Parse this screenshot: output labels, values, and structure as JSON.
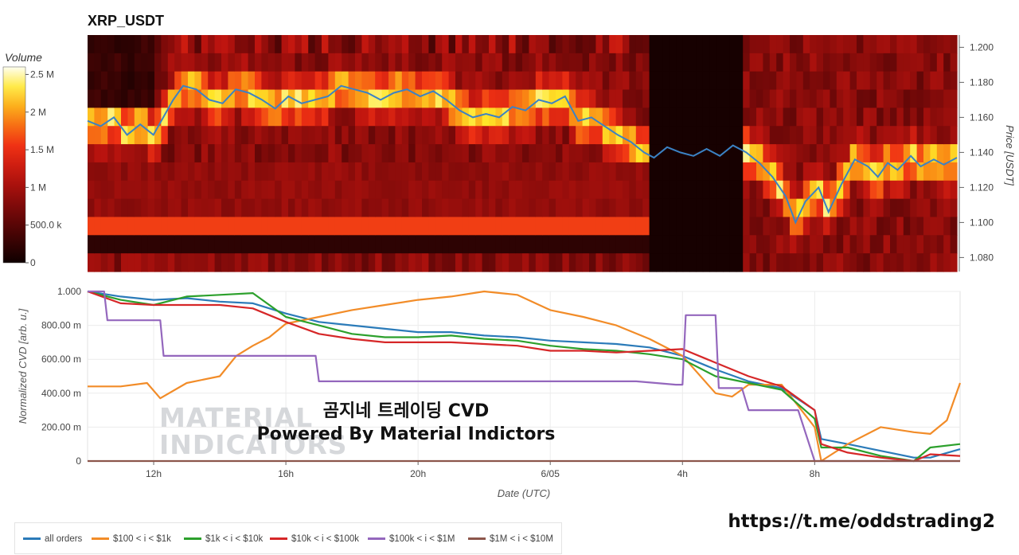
{
  "title": "XRP_USDT",
  "colorbar": {
    "title": "Volume",
    "ticks": [
      "2.5 M",
      "2 M",
      "1.5 M",
      "1 M",
      "500.0 k",
      "0"
    ]
  },
  "heatmap_y_label": "Price [USDT]",
  "watermark": {
    "korean": "곰지네 트레이딩 CVD",
    "english": "Powered By Material Indictors",
    "logo_line1": "MATERIAL",
    "logo_line2": "INDICATORS"
  },
  "link": "https://t.me/oddstrading2",
  "legend": [
    {
      "name": "all orders",
      "color": "#2b7bb9"
    },
    {
      "name": "$100 < i < $1k",
      "color": "#f28c28"
    },
    {
      "name": "$1k < i < $10k",
      "color": "#2ca02c"
    },
    {
      "name": "$10k < i < $100k",
      "color": "#d62728"
    },
    {
      "name": "$100k < i < $1M",
      "color": "#9467bd"
    },
    {
      "name": "$1M < i < $10M",
      "color": "#8c564b"
    }
  ],
  "chart_data": [
    {
      "type": "heatmap",
      "title": "XRP_USDT",
      "ylabel": "Price [USDT]",
      "y_ticks": [
        "1.200",
        "1.180",
        "1.160",
        "1.140",
        "1.120",
        "1.100",
        "1.080"
      ],
      "ylim": [
        1.072,
        1.207
      ],
      "colorbar_range": [
        0,
        2600000
      ],
      "colorbar_label": "Volume",
      "price_series": [
        {
          "t": 0.0,
          "p": 1.158
        },
        {
          "t": 0.4,
          "p": 1.155
        },
        {
          "t": 0.8,
          "p": 1.16
        },
        {
          "t": 1.2,
          "p": 1.15
        },
        {
          "t": 1.6,
          "p": 1.156
        },
        {
          "t": 2.0,
          "p": 1.15
        },
        {
          "t": 2.3,
          "p": 1.16
        },
        {
          "t": 2.6,
          "p": 1.17
        },
        {
          "t": 2.9,
          "p": 1.178
        },
        {
          "t": 3.3,
          "p": 1.176
        },
        {
          "t": 3.7,
          "p": 1.17
        },
        {
          "t": 4.1,
          "p": 1.168
        },
        {
          "t": 4.5,
          "p": 1.176
        },
        {
          "t": 4.9,
          "p": 1.174
        },
        {
          "t": 5.3,
          "p": 1.17
        },
        {
          "t": 5.7,
          "p": 1.165
        },
        {
          "t": 6.1,
          "p": 1.172
        },
        {
          "t": 6.5,
          "p": 1.168
        },
        {
          "t": 6.9,
          "p": 1.17
        },
        {
          "t": 7.3,
          "p": 1.172
        },
        {
          "t": 7.7,
          "p": 1.178
        },
        {
          "t": 8.1,
          "p": 1.176
        },
        {
          "t": 8.5,
          "p": 1.174
        },
        {
          "t": 8.9,
          "p": 1.17
        },
        {
          "t": 9.3,
          "p": 1.174
        },
        {
          "t": 9.7,
          "p": 1.176
        },
        {
          "t": 10.1,
          "p": 1.172
        },
        {
          "t": 10.5,
          "p": 1.175
        },
        {
          "t": 10.9,
          "p": 1.17
        },
        {
          "t": 11.3,
          "p": 1.164
        },
        {
          "t": 11.7,
          "p": 1.16
        },
        {
          "t": 12.1,
          "p": 1.162
        },
        {
          "t": 12.5,
          "p": 1.16
        },
        {
          "t": 12.9,
          "p": 1.166
        },
        {
          "t": 13.3,
          "p": 1.164
        },
        {
          "t": 13.7,
          "p": 1.17
        },
        {
          "t": 14.1,
          "p": 1.168
        },
        {
          "t": 14.5,
          "p": 1.172
        },
        {
          "t": 14.9,
          "p": 1.158
        },
        {
          "t": 15.3,
          "p": 1.16
        },
        {
          "t": 15.7,
          "p": 1.155
        },
        {
          "t": 16.1,
          "p": 1.15
        },
        {
          "t": 16.5,
          "p": 1.146
        },
        {
          "t": 16.9,
          "p": 1.14
        },
        {
          "t": 17.2,
          "p": 1.137
        },
        {
          "t": 17.6,
          "p": 1.143
        },
        {
          "t": 18.0,
          "p": 1.14
        },
        {
          "t": 18.4,
          "p": 1.138
        },
        {
          "t": 18.8,
          "p": 1.142
        },
        {
          "t": 19.2,
          "p": 1.138
        },
        {
          "t": 19.6,
          "p": 1.144
        },
        {
          "t": 20.0,
          "p": 1.14
        },
        {
          "t": 20.4,
          "p": 1.134
        },
        {
          "t": 20.8,
          "p": 1.126
        },
        {
          "t": 21.2,
          "p": 1.115
        },
        {
          "t": 21.5,
          "p": 1.1
        },
        {
          "t": 21.8,
          "p": 1.112
        },
        {
          "t": 22.2,
          "p": 1.12
        },
        {
          "t": 22.5,
          "p": 1.106
        },
        {
          "t": 22.9,
          "p": 1.122
        },
        {
          "t": 23.3,
          "p": 1.136
        },
        {
          "t": 23.7,
          "p": 1.132
        },
        {
          "t": 24.0,
          "p": 1.126
        },
        {
          "t": 24.3,
          "p": 1.134
        },
        {
          "t": 24.6,
          "p": 1.13
        },
        {
          "t": 25.0,
          "p": 1.138
        },
        {
          "t": 25.3,
          "p": 1.132
        },
        {
          "t": 25.7,
          "p": 1.136
        },
        {
          "t": 26.0,
          "p": 1.133
        },
        {
          "t": 26.4,
          "p": 1.137
        }
      ]
    },
    {
      "type": "line",
      "xlabel": "Date (UTC)",
      "ylabel": "Normalized CVD [arb. u.]",
      "y_ticks": [
        "1.000",
        "800.00 m",
        "600.00 m",
        "400.00 m",
        "200.00 m",
        "0"
      ],
      "x_ticks": [
        "12h",
        "16h",
        "20h",
        "6/05",
        "4h",
        "8h"
      ],
      "ylim": [
        0,
        1
      ],
      "x_unit": "hours since start of plotted window",
      "xlim": [
        0,
        26.4
      ],
      "series": [
        {
          "name": "all orders",
          "points": [
            [
              0,
              1.0
            ],
            [
              1,
              0.97
            ],
            [
              2,
              0.95
            ],
            [
              3,
              0.96
            ],
            [
              4,
              0.94
            ],
            [
              5,
              0.93
            ],
            [
              6,
              0.87
            ],
            [
              7,
              0.82
            ],
            [
              8,
              0.8
            ],
            [
              9,
              0.78
            ],
            [
              10,
              0.76
            ],
            [
              11,
              0.76
            ],
            [
              12,
              0.74
            ],
            [
              13,
              0.73
            ],
            [
              14,
              0.71
            ],
            [
              15,
              0.7
            ],
            [
              16,
              0.69
            ],
            [
              17,
              0.67
            ],
            [
              18,
              0.62
            ],
            [
              19,
              0.54
            ],
            [
              20,
              0.47
            ],
            [
              21,
              0.43
            ],
            [
              22,
              0.3
            ],
            [
              22.2,
              0.13
            ],
            [
              23,
              0.1
            ],
            [
              24,
              0.06
            ],
            [
              25,
              0.02
            ],
            [
              25.5,
              0.02
            ],
            [
              26.4,
              0.07
            ]
          ]
        },
        {
          "name": "$100 < i < $1k",
          "points": [
            [
              0,
              0.44
            ],
            [
              1,
              0.44
            ],
            [
              1.8,
              0.46
            ],
            [
              2.2,
              0.37
            ],
            [
              3,
              0.46
            ],
            [
              4,
              0.5
            ],
            [
              4.5,
              0.62
            ],
            [
              5,
              0.68
            ],
            [
              5.5,
              0.73
            ],
            [
              6,
              0.81
            ],
            [
              7,
              0.85
            ],
            [
              8,
              0.89
            ],
            [
              9,
              0.92
            ],
            [
              10,
              0.95
            ],
            [
              11,
              0.97
            ],
            [
              12,
              1.0
            ],
            [
              13,
              0.98
            ],
            [
              14,
              0.89
            ],
            [
              15,
              0.85
            ],
            [
              16,
              0.8
            ],
            [
              17,
              0.72
            ],
            [
              18,
              0.62
            ],
            [
              19,
              0.4
            ],
            [
              19.5,
              0.38
            ],
            [
              20,
              0.45
            ],
            [
              21,
              0.45
            ],
            [
              22,
              0.2
            ],
            [
              22.2,
              0.0
            ],
            [
              23,
              0.1
            ],
            [
              24,
              0.2
            ],
            [
              25,
              0.17
            ],
            [
              25.5,
              0.16
            ],
            [
              26,
              0.24
            ],
            [
              26.4,
              0.46
            ]
          ]
        },
        {
          "name": "$1k < i < $10k",
          "points": [
            [
              0,
              1.0
            ],
            [
              1,
              0.95
            ],
            [
              2,
              0.92
            ],
            [
              3,
              0.97
            ],
            [
              4,
              0.98
            ],
            [
              5,
              0.99
            ],
            [
              6,
              0.85
            ],
            [
              7,
              0.8
            ],
            [
              8,
              0.75
            ],
            [
              9,
              0.73
            ],
            [
              10,
              0.73
            ],
            [
              11,
              0.74
            ],
            [
              12,
              0.72
            ],
            [
              13,
              0.71
            ],
            [
              14,
              0.68
            ],
            [
              15,
              0.66
            ],
            [
              16,
              0.65
            ],
            [
              17,
              0.63
            ],
            [
              18,
              0.6
            ],
            [
              19,
              0.5
            ],
            [
              20,
              0.46
            ],
            [
              21,
              0.42
            ],
            [
              22,
              0.25
            ],
            [
              22.2,
              0.08
            ],
            [
              23,
              0.08
            ],
            [
              24,
              0.03
            ],
            [
              25,
              0.0
            ],
            [
              25.5,
              0.08
            ],
            [
              26.4,
              0.1
            ]
          ]
        },
        {
          "name": "$10k < i < $100k",
          "points": [
            [
              0,
              1.0
            ],
            [
              1,
              0.93
            ],
            [
              2,
              0.92
            ],
            [
              3,
              0.92
            ],
            [
              4,
              0.92
            ],
            [
              5,
              0.9
            ],
            [
              6,
              0.82
            ],
            [
              7,
              0.75
            ],
            [
              8,
              0.72
            ],
            [
              9,
              0.7
            ],
            [
              10,
              0.7
            ],
            [
              11,
              0.7
            ],
            [
              12,
              0.69
            ],
            [
              13,
              0.68
            ],
            [
              14,
              0.65
            ],
            [
              15,
              0.65
            ],
            [
              16,
              0.64
            ],
            [
              17,
              0.65
            ],
            [
              18,
              0.66
            ],
            [
              19,
              0.58
            ],
            [
              20,
              0.5
            ],
            [
              21,
              0.44
            ],
            [
              22,
              0.3
            ],
            [
              22.2,
              0.1
            ],
            [
              23,
              0.05
            ],
            [
              24,
              0.02
            ],
            [
              25,
              0.0
            ],
            [
              25.5,
              0.04
            ],
            [
              26.4,
              0.03
            ]
          ]
        },
        {
          "name": "$100k < i < $1M",
          "points": [
            [
              0,
              1.0
            ],
            [
              0.5,
              1.0
            ],
            [
              0.6,
              0.83
            ],
            [
              2.2,
              0.83
            ],
            [
              2.3,
              0.62
            ],
            [
              6.9,
              0.62
            ],
            [
              7.0,
              0.47
            ],
            [
              16.6,
              0.47
            ],
            [
              17.8,
              0.45
            ],
            [
              18.0,
              0.45
            ],
            [
              18.1,
              0.86
            ],
            [
              19.0,
              0.86
            ],
            [
              19.1,
              0.43
            ],
            [
              19.8,
              0.43
            ],
            [
              20.0,
              0.3
            ],
            [
              21.5,
              0.3
            ],
            [
              22.0,
              0.0
            ],
            [
              26.4,
              0.0
            ]
          ]
        },
        {
          "name": "$1M < i < $10M",
          "points": [
            [
              0,
              0.0
            ],
            [
              26.4,
              0.0
            ]
          ]
        }
      ]
    }
  ]
}
